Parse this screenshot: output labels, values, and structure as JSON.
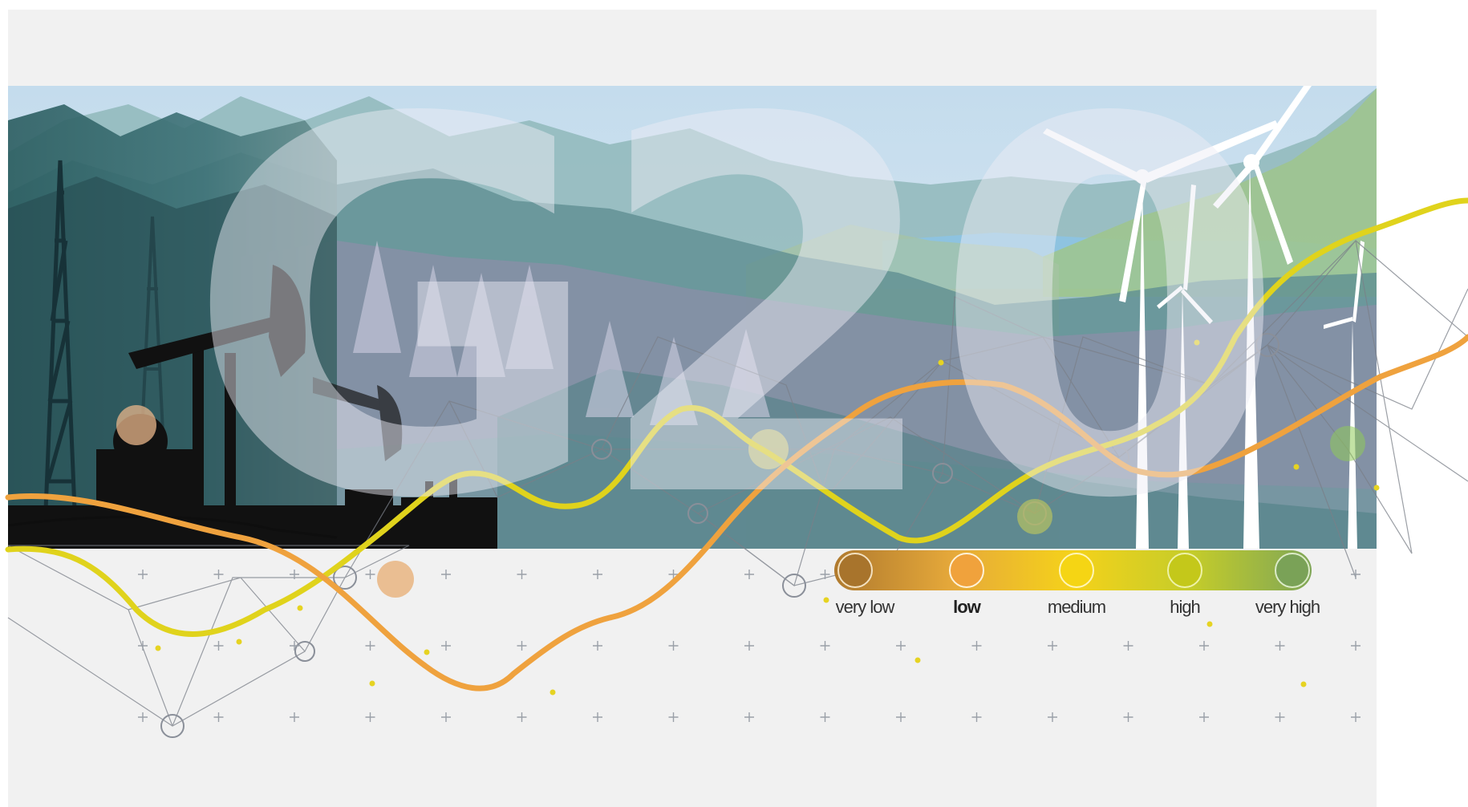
{
  "banner": {
    "title_parts": [
      "G",
      "2",
      "0"
    ]
  },
  "legend": {
    "items": [
      {
        "label": "very low",
        "color": "#b07a2e",
        "bold": false
      },
      {
        "label": "low",
        "color": "#f0a23c",
        "bold": true
      },
      {
        "label": "medium",
        "color": "#f5d21a",
        "bold": false
      },
      {
        "label": "high",
        "color": "#c9c81e",
        "bold": false
      },
      {
        "label": "very high",
        "color": "#7fa657",
        "bold": false
      }
    ]
  },
  "colors": {
    "background": "#f1f1f1",
    "sky": "#cfe3ef",
    "yellow_line": "#e0d31c",
    "orange_line": "#efa23e",
    "network": "#8a8f99"
  },
  "icons": [
    "oil-derrick-icon",
    "pumpjack-icon",
    "wind-turbine-icon",
    "pine-tree-icon",
    "network-node-icon"
  ]
}
